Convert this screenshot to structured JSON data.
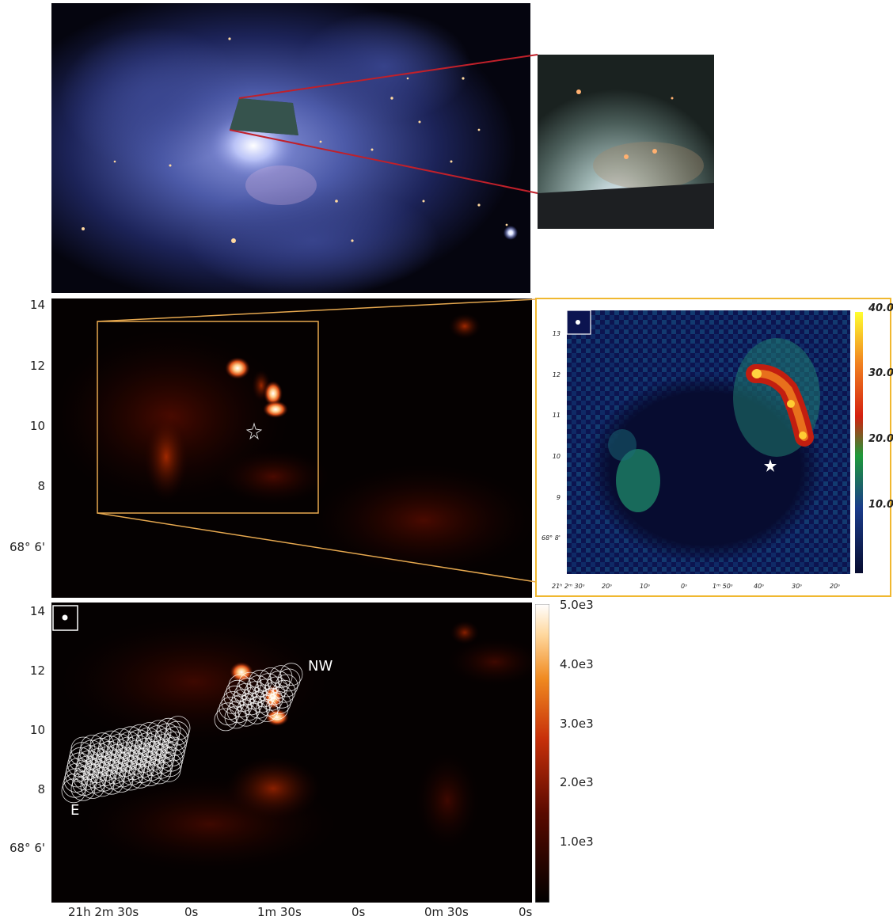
{
  "colors": {
    "zoom_line_red": "#c0202a",
    "zoom_box_orange": "#e6a84f",
    "inset_border": "#f0b830",
    "sky_background": "#05050c",
    "heat_background": "#050101",
    "inset_background": "#0a0f38"
  },
  "panel2": {
    "y_ticks": [
      "14",
      "12",
      "10",
      "8",
      "68° 6'"
    ]
  },
  "inset": {
    "y_ticks": [
      "13",
      "12",
      "11",
      "10",
      "9",
      "68° 8'"
    ],
    "x_ticks": [
      "21ʰ 2ᵐ 30ˢ",
      "20ˢ",
      "10ˢ",
      "0ˢ",
      "1ᵐ 50ˢ",
      "40ˢ",
      "30ˢ",
      "20ˢ"
    ],
    "colorbar_labels": [
      "40.0",
      "30.0",
      "20.0",
      "10.0"
    ]
  },
  "panel3": {
    "y_ticks": [
      "14",
      "12",
      "10",
      "8",
      "68° 6'"
    ],
    "x_ticks": [
      "21h 2m 30s",
      "0s",
      "1m 30s",
      "0s",
      "0m 30s",
      "0s"
    ],
    "region_labels": {
      "nw": "NW",
      "e": "E"
    },
    "colorbar_labels": [
      "5.0e3",
      "4.0e3",
      "3.0e3",
      "2.0e3",
      "1.0e3"
    ]
  }
}
